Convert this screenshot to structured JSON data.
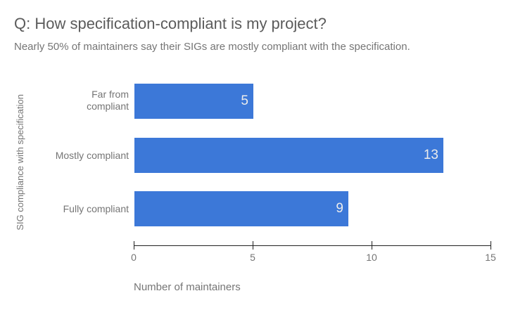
{
  "chart_data": {
    "type": "bar",
    "orientation": "horizontal",
    "title": "Q: How specification-compliant is my project?",
    "subtitle": "Nearly 50% of maintainers say their SIGs are mostly compliant with the specification.",
    "categories": [
      "Far from compliant",
      "Mostly compliant",
      "Fully compliant"
    ],
    "values": [
      5,
      13,
      9
    ],
    "xlabel": "Number of maintainers",
    "ylabel": "SIG compliance with specification",
    "xlim": [
      0,
      15
    ],
    "xticks": [
      0,
      5,
      10,
      15
    ],
    "grid": false,
    "legend": "none",
    "colors": {
      "bar": "#3C78D8",
      "value_label": "#ECECEC",
      "axis_line": "#212121",
      "muted_text": "#757575",
      "title_text": "#5B5B5B"
    }
  }
}
